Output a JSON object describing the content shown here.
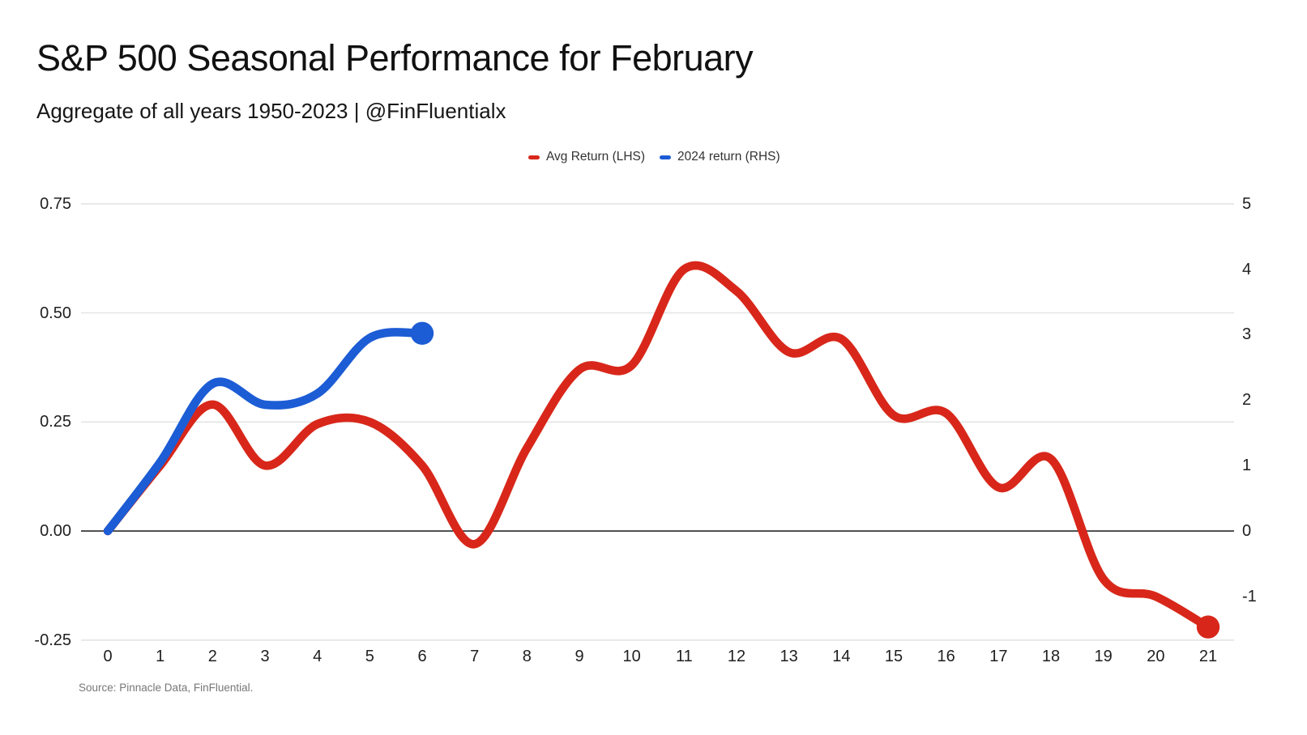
{
  "title": "S&P 500 Seasonal Performance for February",
  "subtitle": "Aggregate of all years 1950-2023 | @FinFluentialx",
  "source_note": "Source: Pinnacle Data, FinFluential.",
  "legend": [
    {
      "label": "Avg Return (LHS)",
      "color": "#d8271a"
    },
    {
      "label": "2024 return (RHS)",
      "color": "#1c5cd5"
    }
  ],
  "colors": {
    "avg_return_red": "#d8271a",
    "return_2024_blue": "#1c5cd5",
    "gridline": "#e4e4e4",
    "zero_line": "#3a3a3a",
    "title_text": "#111111",
    "tick_text": "#1f1f1f",
    "source_text": "#777777"
  },
  "chart_data": {
    "type": "line",
    "title": "S&P 500 Seasonal Performance for February",
    "subtitle": "Aggregate of all years 1950-2023 | @FinFluentialx",
    "x": [
      0,
      1,
      2,
      3,
      4,
      5,
      6,
      7,
      8,
      9,
      10,
      11,
      12,
      13,
      14,
      15,
      16,
      17,
      18,
      19,
      20,
      21
    ],
    "xlabel": "",
    "x_axis": {
      "ticks": [
        "0",
        "1",
        "2",
        "3",
        "4",
        "5",
        "6",
        "7",
        "8",
        "9",
        "10",
        "11",
        "12",
        "13",
        "14",
        "15",
        "16",
        "17",
        "18",
        "19",
        "20",
        "21"
      ]
    },
    "left_axis": {
      "ticks": [
        "0.75",
        "0.50",
        "0.25",
        "0.00",
        "-0.25"
      ],
      "values": [
        0.75,
        0.5,
        0.25,
        0.0,
        -0.25
      ],
      "range": [
        -0.25,
        0.75
      ]
    },
    "right_axis": {
      "ticks": [
        "5",
        "4",
        "3",
        "2",
        "1",
        "0",
        "-1"
      ],
      "values": [
        5,
        4,
        3,
        2,
        1,
        0,
        -1
      ],
      "range": [
        -1.67,
        5
      ]
    },
    "grid": "horizontal-only, zero line emphasized",
    "legend_position": "top-center",
    "series": [
      {
        "name": "Avg Return (LHS)",
        "axis": "left",
        "color": "#d8271a",
        "smooth": true,
        "endpoint_dot": true,
        "values": [
          0.0,
          0.15,
          0.29,
          0.15,
          0.245,
          0.25,
          0.15,
          -0.03,
          0.19,
          0.37,
          0.38,
          0.6,
          0.55,
          0.41,
          0.44,
          0.265,
          0.27,
          0.1,
          0.165,
          -0.11,
          -0.15,
          -0.22
        ]
      },
      {
        "name": "2024 return (RHS)",
        "axis": "right",
        "color": "#1c5cd5",
        "smooth": true,
        "endpoint_dot": true,
        "values": [
          0,
          1.05,
          2.25,
          1.93,
          2.1,
          2.95,
          3.02
        ]
      }
    ]
  }
}
